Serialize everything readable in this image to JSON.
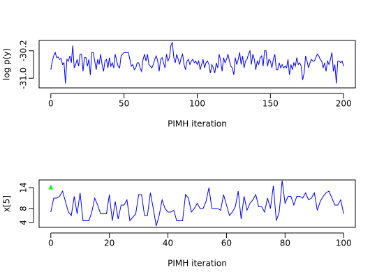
{
  "chart_data": [
    {
      "type": "line",
      "xlabel": "PIMH iteration",
      "ylabel": "log p(y)",
      "color": "#0000ff",
      "xlim": [
        -8,
        208
      ],
      "ylim": [
        -31.28,
        -29.9
      ],
      "xticks": [
        0,
        50,
        100,
        150,
        200
      ],
      "yticks": [
        {
          "value": -31.0,
          "label": "-31.0"
        },
        {
          "value": -30.2,
          "label": "-30.2"
        }
      ],
      "x": [
        0,
        1,
        2,
        3,
        4,
        5,
        6,
        7,
        8,
        9,
        10,
        11,
        12,
        13,
        14,
        15,
        16,
        17,
        18,
        19,
        20,
        21,
        22,
        23,
        24,
        25,
        26,
        27,
        28,
        29,
        30,
        31,
        32,
        33,
        34,
        35,
        36,
        37,
        38,
        39,
        40,
        41,
        42,
        43,
        44,
        45,
        46,
        47,
        48,
        49,
        50,
        51,
        52,
        53,
        54,
        55,
        56,
        57,
        58,
        59,
        60,
        61,
        62,
        63,
        64,
        65,
        66,
        67,
        68,
        69,
        70,
        71,
        72,
        73,
        74,
        75,
        76,
        77,
        78,
        79,
        80,
        81,
        82,
        83,
        84,
        85,
        86,
        87,
        88,
        89,
        90,
        91,
        92,
        93,
        94,
        95,
        96,
        97,
        98,
        99,
        100,
        101,
        102,
        103,
        104,
        105,
        106,
        107,
        108,
        109,
        110,
        111,
        112,
        113,
        114,
        115,
        116,
        117,
        118,
        119,
        120,
        121,
        122,
        123,
        124,
        125,
        126,
        127,
        128,
        129,
        130,
        131,
        132,
        133,
        134,
        135,
        136,
        137,
        138,
        139,
        140,
        141,
        142,
        143,
        144,
        145,
        146,
        147,
        148,
        149,
        150,
        151,
        152,
        153,
        154,
        155,
        156,
        157,
        158,
        159,
        160,
        161,
        162,
        163,
        164,
        165,
        166,
        167,
        168,
        169,
        170,
        171,
        172,
        173,
        174,
        175,
        176,
        177,
        178,
        179,
        180,
        181,
        182,
        183,
        184,
        185,
        186,
        187,
        188,
        189,
        190,
        191,
        192,
        193,
        194,
        195,
        196,
        197,
        198,
        199,
        200
      ],
      "values": [
        -30.75,
        -30.5,
        -30.35,
        -30.25,
        -30.4,
        -30.38,
        -30.45,
        -30.42,
        -30.6,
        -30.55,
        -31.15,
        -30.45,
        -30.5,
        -30.35,
        -30.55,
        -30.05,
        -30.7,
        -30.6,
        -30.45,
        -30.65,
        -30.3,
        -30.3,
        -30.8,
        -30.4,
        -30.4,
        -30.65,
        -30.45,
        -30.9,
        -30.25,
        -30.25,
        -30.5,
        -30.75,
        -30.45,
        -30.6,
        -30.3,
        -30.6,
        -30.8,
        -30.5,
        -30.45,
        -30.7,
        -30.4,
        -30.65,
        -30.55,
        -30.7,
        -30.3,
        -30.5,
        -30.65,
        -30.7,
        -30.35,
        -30.3,
        -30.25,
        -30.25,
        -30.25,
        -30.25,
        -30.45,
        -30.65,
        -30.6,
        -30.75,
        -30.7,
        -30.55,
        -30.55,
        -30.7,
        -30.8,
        -30.45,
        -30.3,
        -30.5,
        -30.3,
        -30.6,
        -30.65,
        -30.7,
        -30.6,
        -30.45,
        -30.35,
        -30.5,
        -30.8,
        -30.45,
        -30.4,
        -30.55,
        -30.7,
        -30.3,
        -30.5,
        -30.4,
        -30.05,
        -29.95,
        -30.4,
        -30.55,
        -30.3,
        -30.45,
        -30.6,
        -30.4,
        -30.3,
        -30.6,
        -30.75,
        -30.5,
        -30.45,
        -30.6,
        -30.5,
        -30.45,
        -30.55,
        -30.5,
        -30.6,
        -30.5,
        -30.75,
        -30.6,
        -30.45,
        -30.7,
        -30.55,
        -30.5,
        -30.6,
        -30.85,
        -30.6,
        -30.7,
        -30.85,
        -30.55,
        -30.7,
        -30.3,
        -30.5,
        -30.8,
        -30.4,
        -30.55,
        -30.45,
        -30.3,
        -30.5,
        -30.65,
        -30.7,
        -30.9,
        -30.4,
        -30.6,
        -30.45,
        -30.25,
        -30.6,
        -30.35,
        -30.7,
        -30.5,
        -30.45,
        -30.3,
        -30.2,
        -30.6,
        -30.3,
        -30.45,
        -30.75,
        -30.5,
        -30.6,
        -30.4,
        -30.35,
        -30.65,
        -30.2,
        -30.2,
        -30.65,
        -30.45,
        -30.5,
        -30.7,
        -30.45,
        -30.3,
        -30.75,
        -30.75,
        -30.55,
        -30.7,
        -30.6,
        -30.7,
        -30.65,
        -30.7,
        -30.45,
        -30.9,
        -30.6,
        -30.75,
        -30.55,
        -30.65,
        -30.4,
        -30.6,
        -30.55,
        -30.65,
        -31.05,
        -30.85,
        -30.35,
        -30.5,
        -30.7,
        -30.55,
        -30.45,
        -30.5,
        -30.5,
        -30.4,
        -30.3,
        -30.35,
        -30.45,
        -30.5,
        -30.7,
        -30.55,
        -30.8,
        -30.5,
        -30.6,
        -30.45,
        -30.25,
        -30.8,
        -30.6,
        -31.15,
        -30.5,
        -30.5,
        -30.55,
        -30.5,
        -30.65
      ]
    },
    {
      "type": "line",
      "xlabel": "PIMH iteration",
      "ylabel": "x[5]",
      "color": "#0000ff",
      "xlim": [
        -4,
        104
      ],
      "ylim": [
        2.6,
        16.2
      ],
      "xticks": [
        0,
        20,
        40,
        60,
        80,
        100
      ],
      "yticks": [
        4,
        8,
        14
      ],
      "x": [
        0,
        1,
        2,
        3,
        4,
        5,
        6,
        7,
        8,
        9,
        10,
        11,
        12,
        13,
        14,
        15,
        16,
        17,
        18,
        19,
        20,
        21,
        22,
        23,
        24,
        25,
        26,
        27,
        28,
        29,
        30,
        31,
        32,
        33,
        34,
        35,
        36,
        37,
        38,
        39,
        40,
        41,
        42,
        43,
        44,
        45,
        46,
        47,
        48,
        49,
        50,
        51,
        52,
        53,
        54,
        55,
        56,
        57,
        58,
        59,
        60,
        61,
        62,
        63,
        64,
        65,
        66,
        67,
        68,
        69,
        70,
        71,
        72,
        73,
        74,
        75,
        76,
        77,
        78,
        79,
        80,
        81,
        82,
        83,
        84,
        85,
        86,
        87,
        88,
        89,
        90,
        91,
        92,
        93,
        94,
        95,
        96,
        97,
        98,
        99,
        100
      ],
      "values": [
        7,
        11,
        11,
        11.5,
        13,
        10,
        7,
        6,
        11.5,
        6.5,
        12.5,
        4.5,
        4.5,
        4.5,
        7,
        11,
        9,
        6.5,
        6.5,
        6.5,
        12,
        4.5,
        10,
        5,
        9,
        9,
        10.5,
        4.5,
        5.5,
        6.5,
        12,
        12,
        6,
        6,
        12.5,
        8,
        3,
        6,
        10.5,
        8,
        7,
        7,
        7.5,
        4.5,
        4.5,
        4.5,
        12,
        11,
        7,
        8,
        9.5,
        8,
        8,
        10,
        14,
        8,
        8,
        8,
        7.5,
        12,
        9,
        6,
        7,
        8.5,
        13,
        5,
        11.5,
        7.5,
        9.5,
        10.5,
        12,
        8.5,
        8.5,
        7,
        11,
        8,
        14.5,
        4.5,
        7,
        16,
        9.5,
        11.5,
        11.5,
        9,
        11.5,
        11.5,
        11,
        12.5,
        10.5,
        11,
        12.5,
        7.5,
        10,
        11.5,
        12.5,
        13,
        11,
        9,
        9,
        10.5,
        6.5
      ],
      "points": {
        "x": [
          0
        ],
        "values": [
          14
        ],
        "color": "#00ff00",
        "marker": "triangle"
      }
    }
  ]
}
